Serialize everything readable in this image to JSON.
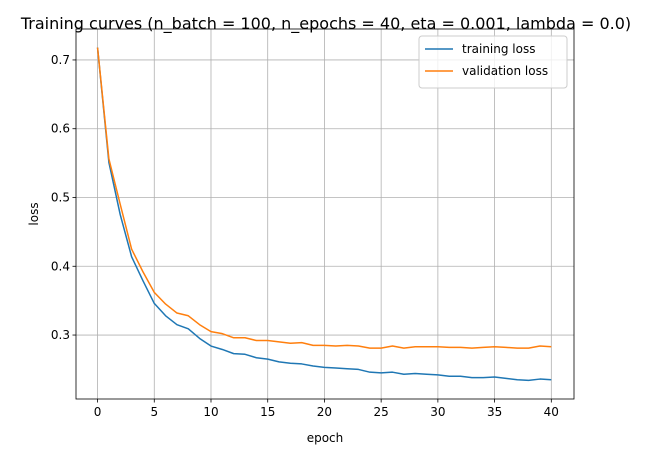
{
  "chart_data": {
    "type": "line",
    "title": "Training curves (n_batch = 100, n_epochs = 40, eta = 0.001, lambda = 0.0)",
    "xlabel": "epoch",
    "ylabel": "loss",
    "xlim": [
      -1.9,
      42
    ],
    "ylim": [
      0.207,
      0.745
    ],
    "xticks": [
      0,
      5,
      10,
      15,
      20,
      25,
      30,
      35,
      40
    ],
    "yticks": [
      0.3,
      0.4,
      0.5,
      0.6,
      0.7
    ],
    "grid": true,
    "legend_position": "top-right",
    "x": [
      0,
      1,
      2,
      3,
      4,
      5,
      6,
      7,
      8,
      9,
      10,
      11,
      12,
      13,
      14,
      15,
      16,
      17,
      18,
      19,
      20,
      21,
      22,
      23,
      24,
      25,
      26,
      27,
      28,
      29,
      30,
      31,
      32,
      33,
      34,
      35,
      36,
      37,
      38,
      39,
      40
    ],
    "series": [
      {
        "name": "training loss",
        "color": "#1f77b4",
        "values": [
          0.718,
          0.551,
          0.475,
          0.414,
          0.379,
          0.346,
          0.328,
          0.315,
          0.309,
          0.295,
          0.284,
          0.279,
          0.273,
          0.272,
          0.267,
          0.265,
          0.261,
          0.259,
          0.258,
          0.255,
          0.253,
          0.252,
          0.251,
          0.25,
          0.246,
          0.245,
          0.246,
          0.243,
          0.244,
          0.243,
          0.242,
          0.24,
          0.24,
          0.238,
          0.238,
          0.239,
          0.237,
          0.235,
          0.234,
          0.236,
          0.235
        ]
      },
      {
        "name": "validation loss",
        "color": "#ff7f0e",
        "values": [
          0.718,
          0.556,
          0.49,
          0.425,
          0.392,
          0.362,
          0.345,
          0.332,
          0.328,
          0.315,
          0.305,
          0.302,
          0.296,
          0.296,
          0.292,
          0.292,
          0.29,
          0.288,
          0.289,
          0.285,
          0.285,
          0.284,
          0.285,
          0.284,
          0.281,
          0.281,
          0.284,
          0.281,
          0.283,
          0.283,
          0.283,
          0.282,
          0.282,
          0.281,
          0.282,
          0.283,
          0.282,
          0.281,
          0.281,
          0.284,
          0.283
        ]
      }
    ]
  }
}
